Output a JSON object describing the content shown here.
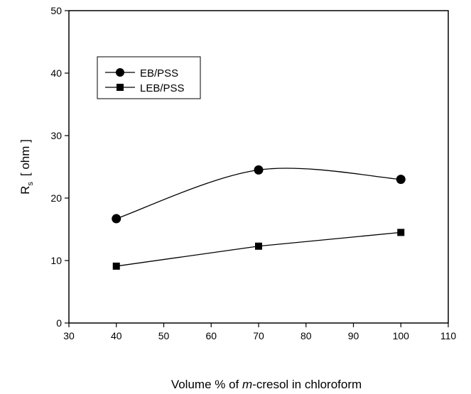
{
  "chart_data": {
    "type": "line",
    "xlabel_prefix": "Volume % of ",
    "xlabel_italic": "m",
    "xlabel_suffix": "-cresol in chloroform",
    "ylabel_main": "R",
    "ylabel_sub": "s",
    "ylabel_unit": "[ ohm ]",
    "xlim": [
      30,
      110
    ],
    "ylim": [
      0,
      50
    ],
    "xticks": [
      30,
      40,
      50,
      60,
      70,
      80,
      90,
      100,
      110
    ],
    "yticks": [
      0,
      10,
      20,
      30,
      40,
      50
    ],
    "grid": false,
    "legend_position": "top-left",
    "series": [
      {
        "name": "EB/PSS",
        "marker": "circle",
        "smooth": true,
        "x": [
          40,
          70,
          100
        ],
        "y": [
          16.7,
          24.5,
          23.0
        ]
      },
      {
        "name": "LEB/PSS",
        "marker": "square",
        "smooth": false,
        "x": [
          40,
          70,
          100
        ],
        "y": [
          9.1,
          12.3,
          14.5
        ]
      }
    ],
    "colors": {
      "line": "#000000",
      "background": "#ffffff"
    }
  }
}
